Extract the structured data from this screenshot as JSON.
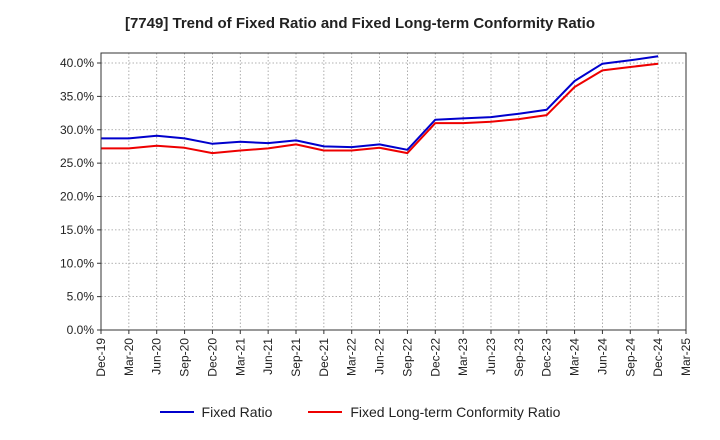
{
  "chart_data": {
    "type": "line",
    "title": "[7749]  Trend of Fixed Ratio and Fixed Long-term Conformity Ratio",
    "xlabel": "",
    "ylabel": "",
    "categories": [
      "Dec-19",
      "Mar-20",
      "Jun-20",
      "Sep-20",
      "Dec-20",
      "Mar-21",
      "Jun-21",
      "Sep-21",
      "Dec-21",
      "Mar-22",
      "Jun-22",
      "Sep-22",
      "Dec-22",
      "Mar-23",
      "Jun-23",
      "Sep-23",
      "Dec-23",
      "Mar-24",
      "Jun-24",
      "Sep-24",
      "Dec-24",
      "Mar-25"
    ],
    "y_ticks": [
      "0.0%",
      "5.0%",
      "10.0%",
      "15.0%",
      "20.0%",
      "25.0%",
      "30.0%",
      "35.0%",
      "40.0%"
    ],
    "ylim": [
      0,
      41.5
    ],
    "grid": true,
    "legend_position": "bottom",
    "series": [
      {
        "name": "Fixed Ratio",
        "color": "#0000cc",
        "values": [
          28.7,
          28.7,
          29.1,
          28.7,
          27.9,
          28.2,
          28.0,
          28.4,
          27.5,
          27.4,
          27.8,
          27.0,
          31.5,
          31.7,
          31.9,
          32.4,
          33.0,
          37.3,
          39.9,
          40.4,
          41.0,
          null
        ]
      },
      {
        "name": "Fixed Long-term Conformity Ratio",
        "color": "#ee0000",
        "values": [
          27.2,
          27.2,
          27.6,
          27.3,
          26.5,
          26.9,
          27.2,
          27.8,
          26.9,
          26.9,
          27.3,
          26.5,
          31.0,
          31.0,
          31.2,
          31.6,
          32.2,
          36.4,
          38.9,
          39.4,
          39.9,
          null
        ]
      }
    ]
  }
}
